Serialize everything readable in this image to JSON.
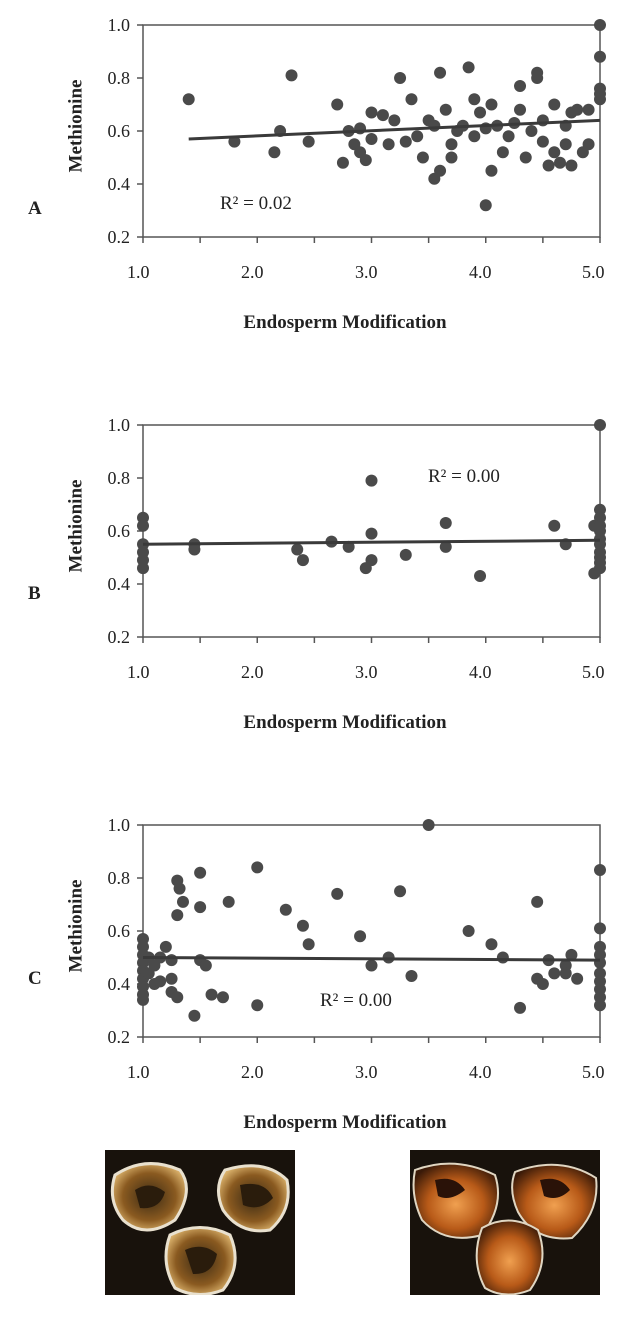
{
  "panels": [
    {
      "letter": "A",
      "ylabel": "Methionine",
      "xlabel": "Endosperm Modification",
      "r2_label": "R² = 0.02",
      "xticks": [
        "1.0",
        "2.0",
        "3.0",
        "4.0",
        "5.0"
      ],
      "yticks": [
        "0.2",
        "0.4",
        "0.6",
        "0.8",
        "1.0"
      ]
    },
    {
      "letter": "B",
      "ylabel": "Methionine",
      "xlabel": "Endosperm Modification",
      "r2_label": "R² = 0.00",
      "xticks": [
        "1.0",
        "2.0",
        "3.0",
        "4.0",
        "5.0"
      ],
      "yticks": [
        "0.2",
        "0.4",
        "0.6",
        "0.8",
        "1.0"
      ]
    },
    {
      "letter": "C",
      "ylabel": "Methionine",
      "xlabel": "Endosperm Modification",
      "r2_label": "R² = 0.00",
      "xticks": [
        "1.0",
        "2.0",
        "3.0",
        "4.0",
        "5.0"
      ],
      "yticks": [
        "0.2",
        "0.4",
        "0.6",
        "0.8",
        "1.0"
      ]
    }
  ],
  "chart_data": [
    {
      "type": "scatter",
      "title": "",
      "xlabel": "Endosperm Modification",
      "ylabel": "Methionine",
      "xlim": [
        1.0,
        5.0
      ],
      "ylim": [
        0.2,
        1.0
      ],
      "annotation": "R² = 0.02",
      "marker_color": "#4a4a4a",
      "trendline": {
        "x": [
          1.4,
          5.0
        ],
        "y": [
          0.57,
          0.64
        ]
      },
      "points": [
        [
          1.4,
          0.72
        ],
        [
          1.8,
          0.56
        ],
        [
          2.15,
          0.52
        ],
        [
          2.2,
          0.6
        ],
        [
          2.3,
          0.81
        ],
        [
          2.45,
          0.56
        ],
        [
          2.7,
          0.7
        ],
        [
          2.75,
          0.48
        ],
        [
          2.8,
          0.6
        ],
        [
          2.85,
          0.55
        ],
        [
          2.9,
          0.52
        ],
        [
          2.9,
          0.61
        ],
        [
          2.95,
          0.49
        ],
        [
          3.0,
          0.57
        ],
        [
          3.0,
          0.67
        ],
        [
          3.1,
          0.66
        ],
        [
          3.15,
          0.55
        ],
        [
          3.2,
          0.64
        ],
        [
          3.25,
          0.8
        ],
        [
          3.3,
          0.56
        ],
        [
          3.35,
          0.72
        ],
        [
          3.4,
          0.58
        ],
        [
          3.45,
          0.5
        ],
        [
          3.5,
          0.64
        ],
        [
          3.55,
          0.42
        ],
        [
          3.55,
          0.62
        ],
        [
          3.6,
          0.82
        ],
        [
          3.6,
          0.45
        ],
        [
          3.65,
          0.68
        ],
        [
          3.7,
          0.5
        ],
        [
          3.7,
          0.55
        ],
        [
          3.75,
          0.6
        ],
        [
          3.8,
          0.62
        ],
        [
          3.85,
          0.84
        ],
        [
          3.9,
          0.72
        ],
        [
          3.9,
          0.58
        ],
        [
          3.95,
          0.67
        ],
        [
          4.0,
          0.61
        ],
        [
          4.0,
          0.32
        ],
        [
          4.05,
          0.45
        ],
        [
          4.05,
          0.7
        ],
        [
          4.1,
          0.62
        ],
        [
          4.15,
          0.52
        ],
        [
          4.2,
          0.58
        ],
        [
          4.25,
          0.63
        ],
        [
          4.3,
          0.77
        ],
        [
          4.3,
          0.68
        ],
        [
          4.35,
          0.5
        ],
        [
          4.4,
          0.6
        ],
        [
          4.45,
          0.8
        ],
        [
          4.45,
          0.82
        ],
        [
          4.5,
          0.56
        ],
        [
          4.5,
          0.64
        ],
        [
          4.55,
          0.47
        ],
        [
          4.6,
          0.7
        ],
        [
          4.6,
          0.52
        ],
        [
          4.65,
          0.48
        ],
        [
          4.7,
          0.62
        ],
        [
          4.7,
          0.55
        ],
        [
          4.75,
          0.47
        ],
        [
          4.75,
          0.67
        ],
        [
          4.8,
          0.68
        ],
        [
          4.85,
          0.52
        ],
        [
          4.9,
          0.55
        ],
        [
          4.9,
          0.68
        ],
        [
          5.0,
          1.0
        ],
        [
          5.0,
          0.88
        ],
        [
          5.0,
          0.74
        ],
        [
          5.0,
          0.72
        ],
        [
          5.0,
          0.76
        ]
      ]
    },
    {
      "type": "scatter",
      "title": "",
      "xlabel": "Endosperm Modification",
      "ylabel": "Methionine",
      "xlim": [
        1.0,
        5.0
      ],
      "ylim": [
        0.2,
        1.0
      ],
      "annotation": "R² = 0.00",
      "marker_color": "#4a4a4a",
      "trendline": {
        "x": [
          1.0,
          5.0
        ],
        "y": [
          0.55,
          0.565
        ]
      },
      "points": [
        [
          1.0,
          0.65
        ],
        [
          1.0,
          0.62
        ],
        [
          1.0,
          0.55
        ],
        [
          1.0,
          0.52
        ],
        [
          1.0,
          0.49
        ],
        [
          1.0,
          0.46
        ],
        [
          1.45,
          0.55
        ],
        [
          1.45,
          0.53
        ],
        [
          2.35,
          0.53
        ],
        [
          2.4,
          0.49
        ],
        [
          2.65,
          0.56
        ],
        [
          2.8,
          0.54
        ],
        [
          2.95,
          0.46
        ],
        [
          3.0,
          0.79
        ],
        [
          3.0,
          0.59
        ],
        [
          3.0,
          0.49
        ],
        [
          3.3,
          0.51
        ],
        [
          3.65,
          0.63
        ],
        [
          3.65,
          0.54
        ],
        [
          3.95,
          0.43
        ],
        [
          4.6,
          0.62
        ],
        [
          4.7,
          0.55
        ],
        [
          4.95,
          0.62
        ],
        [
          4.95,
          0.44
        ],
        [
          5.0,
          1.0
        ],
        [
          5.0,
          0.68
        ],
        [
          5.0,
          0.65
        ],
        [
          5.0,
          0.62
        ],
        [
          5.0,
          0.6
        ],
        [
          5.0,
          0.57
        ],
        [
          5.0,
          0.55
        ],
        [
          5.0,
          0.52
        ],
        [
          5.0,
          0.5
        ],
        [
          5.0,
          0.48
        ],
        [
          5.0,
          0.46
        ]
      ]
    },
    {
      "type": "scatter",
      "title": "",
      "xlabel": "Endosperm Modification",
      "ylabel": "Methionine",
      "xlim": [
        1.0,
        5.0
      ],
      "ylim": [
        0.2,
        1.0
      ],
      "annotation": "R² = 0.00",
      "marker_color": "#4a4a4a",
      "trendline": {
        "x": [
          1.0,
          5.0
        ],
        "y": [
          0.5,
          0.49
        ]
      },
      "points": [
        [
          1.0,
          0.57
        ],
        [
          1.0,
          0.54
        ],
        [
          1.0,
          0.51
        ],
        [
          1.0,
          0.48
        ],
        [
          1.0,
          0.45
        ],
        [
          1.0,
          0.42
        ],
        [
          1.0,
          0.39
        ],
        [
          1.0,
          0.36
        ],
        [
          1.0,
          0.34
        ],
        [
          1.05,
          0.5
        ],
        [
          1.05,
          0.44
        ],
        [
          1.1,
          0.4
        ],
        [
          1.1,
          0.47
        ],
        [
          1.15,
          0.41
        ],
        [
          1.15,
          0.5
        ],
        [
          1.2,
          0.54
        ],
        [
          1.25,
          0.49
        ],
        [
          1.25,
          0.42
        ],
        [
          1.25,
          0.37
        ],
        [
          1.3,
          0.35
        ],
        [
          1.3,
          0.79
        ],
        [
          1.32,
          0.76
        ],
        [
          1.3,
          0.66
        ],
        [
          1.35,
          0.71
        ],
        [
          1.45,
          0.28
        ],
        [
          1.5,
          0.82
        ],
        [
          1.5,
          0.69
        ],
        [
          1.5,
          0.49
        ],
        [
          1.55,
          0.47
        ],
        [
          1.6,
          0.36
        ],
        [
          1.7,
          0.35
        ],
        [
          1.75,
          0.71
        ],
        [
          2.0,
          0.84
        ],
        [
          2.0,
          0.32
        ],
        [
          2.25,
          0.68
        ],
        [
          2.4,
          0.62
        ],
        [
          2.45,
          0.55
        ],
        [
          2.7,
          0.74
        ],
        [
          2.9,
          0.58
        ],
        [
          3.0,
          0.47
        ],
        [
          3.15,
          0.5
        ],
        [
          3.25,
          0.75
        ],
        [
          3.35,
          0.43
        ],
        [
          3.5,
          1.0
        ],
        [
          3.85,
          0.6
        ],
        [
          4.05,
          0.55
        ],
        [
          4.15,
          0.5
        ],
        [
          4.3,
          0.31
        ],
        [
          4.45,
          0.71
        ],
        [
          4.45,
          0.42
        ],
        [
          4.5,
          0.4
        ],
        [
          4.55,
          0.49
        ],
        [
          4.6,
          0.44
        ],
        [
          4.7,
          0.47
        ],
        [
          4.7,
          0.44
        ],
        [
          4.75,
          0.51
        ],
        [
          4.8,
          0.42
        ],
        [
          5.0,
          0.83
        ],
        [
          5.0,
          0.61
        ],
        [
          5.0,
          0.54
        ],
        [
          5.0,
          0.51
        ],
        [
          5.0,
          0.48
        ],
        [
          5.0,
          0.44
        ],
        [
          5.0,
          0.41
        ],
        [
          5.0,
          0.38
        ],
        [
          5.0,
          0.35
        ],
        [
          5.0,
          0.32
        ]
      ]
    }
  ],
  "photos": [
    {
      "name": "kernel-cross-section-left",
      "bg": "#1a140e"
    },
    {
      "name": "kernel-cross-section-right",
      "bg": "#1a140e"
    }
  ]
}
